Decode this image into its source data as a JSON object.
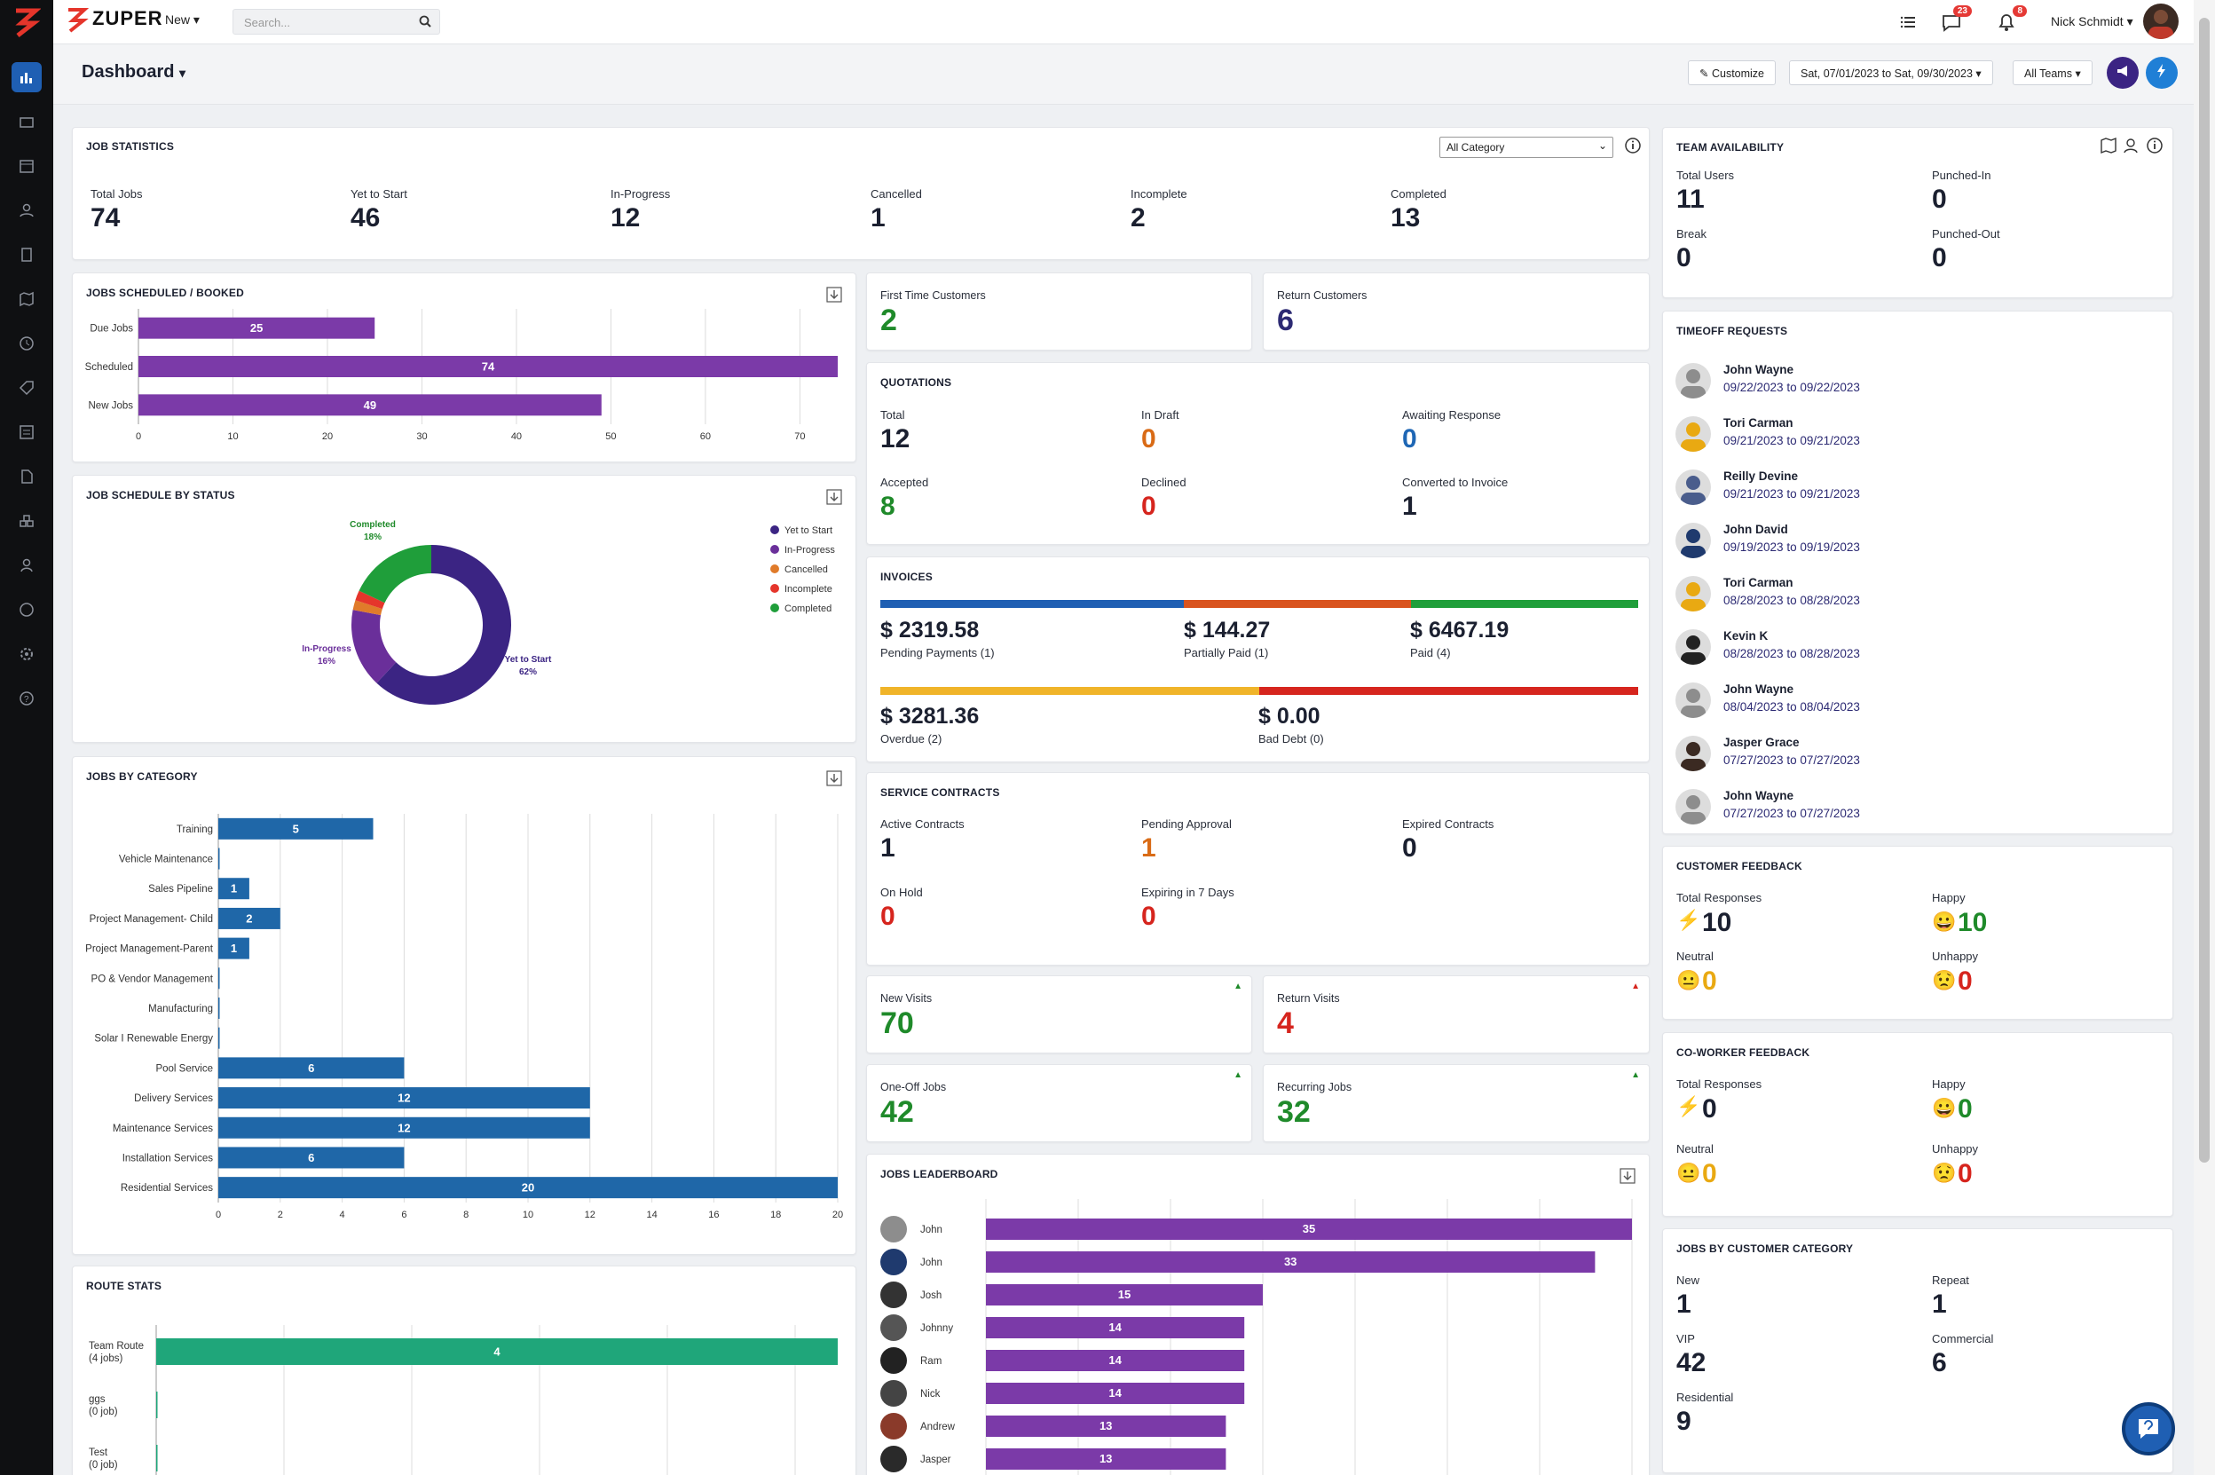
{
  "header": {
    "brand": "ZUPER",
    "new_label": "New",
    "search_placeholder": "Search...",
    "messages_badge": "23",
    "notifications_badge": "8",
    "user_name": "Nick Schmidt"
  },
  "subheader": {
    "title": "Dashboard",
    "customize": "Customize",
    "date_range": "Sat, 07/01/2023 to Sat, 09/30/2023",
    "teams": "All Teams"
  },
  "job_statistics": {
    "title": "JOB STATISTICS",
    "filter": "All Category",
    "items": [
      {
        "label": "Total Jobs",
        "value": "74"
      },
      {
        "label": "Yet to Start",
        "value": "46"
      },
      {
        "label": "In-Progress",
        "value": "12"
      },
      {
        "label": "Cancelled",
        "value": "1"
      },
      {
        "label": "Incomplete",
        "value": "2"
      },
      {
        "label": "Completed",
        "value": "13"
      }
    ]
  },
  "team_availability": {
    "title": "TEAM AVAILABILITY",
    "total_users_label": "Total Users",
    "total_users": "11",
    "punched_in_label": "Punched-In",
    "punched_in": "0",
    "break_label": "Break",
    "break": "0",
    "punched_out_label": "Punched-Out",
    "punched_out": "0"
  },
  "jobs_scheduled": {
    "title": "JOBS SCHEDULED / BOOKED",
    "chart_data": {
      "type": "bar",
      "orientation": "horizontal",
      "categories": [
        "Due Jobs",
        "Scheduled",
        "New Jobs"
      ],
      "values": [
        25,
        74,
        49
      ],
      "xticks": [
        "0",
        "10",
        "20",
        "30",
        "40",
        "50",
        "60",
        "70"
      ],
      "xlim": [
        0,
        74
      ],
      "color": "#7b3aa8"
    }
  },
  "first_time_customers": {
    "label": "First Time Customers",
    "value": "2"
  },
  "return_customers": {
    "label": "Return Customers",
    "value": "6"
  },
  "quotations": {
    "title": "QUOTATIONS",
    "total_label": "Total",
    "total": "12",
    "in_draft_label": "In Draft",
    "in_draft": "0",
    "awaiting_label": "Awaiting Response",
    "awaiting": "0",
    "accepted_label": "Accepted",
    "accepted": "8",
    "declined_label": "Declined",
    "declined": "0",
    "converted_label": "Converted to Invoice",
    "converted": "1"
  },
  "invoices": {
    "title": "INVOICES",
    "pending_amount": "$ 2319.58",
    "pending_label": "Pending Payments (1)",
    "partial_amount": "$ 144.27",
    "partial_label": "Partially Paid (1)",
    "paid_amount": "$ 6467.19",
    "paid_label": "Paid (4)",
    "overdue_amount": "$ 3281.36",
    "overdue_label": "Overdue (2)",
    "bad_amount": "$ 0.00",
    "bad_label": "Bad Debt (0)",
    "bar1": [
      {
        "color": "#1f5fb3",
        "fraction": 0.4
      },
      {
        "color": "#d9531e",
        "fraction": 0.3
      },
      {
        "color": "#1f9e3a",
        "fraction": 0.3
      }
    ],
    "bar2": [
      {
        "color": "#f0b429",
        "fraction": 0.5
      },
      {
        "color": "#d6251e",
        "fraction": 0.5
      }
    ]
  },
  "service_contracts": {
    "title": "SERVICE CONTRACTS",
    "active_label": "Active Contracts",
    "active": "1",
    "pending_label": "Pending Approval",
    "pending": "1",
    "expired_label": "Expired Contracts",
    "expired": "0",
    "hold_label": "On Hold",
    "hold": "0",
    "expiring_label": "Expiring in 7 Days",
    "expiring": "0"
  },
  "new_visits": {
    "label": "New Visits",
    "value": "70"
  },
  "return_visits": {
    "label": "Return Visits",
    "value": "4"
  },
  "one_off_jobs": {
    "label": "One-Off Jobs",
    "value": "42"
  },
  "recurring_jobs": {
    "label": "Recurring Jobs",
    "value": "32"
  },
  "job_status": {
    "title": "JOB SCHEDULE BY STATUS",
    "chart_data": {
      "type": "pie",
      "variant": "donut",
      "slices": [
        {
          "name": "Yet to Start",
          "value": 62,
          "color": "#3b2483"
        },
        {
          "name": "In-Progress",
          "value": 16,
          "color": "#6a2f9a"
        },
        {
          "name": "Cancelled",
          "value": 2,
          "color": "#e07b2a"
        },
        {
          "name": "Incomplete",
          "value": 2,
          "color": "#e5352b"
        },
        {
          "name": "Completed",
          "value": 18,
          "color": "#1f9e3a"
        }
      ],
      "labels": [
        {
          "text": "Completed",
          "pct": "18%"
        },
        {
          "text": "In-Progress",
          "pct": "16%"
        },
        {
          "text": "Yet to Start",
          "pct": "62%"
        }
      ],
      "legend_position": "top-right"
    }
  },
  "jobs_by_category": {
    "title": "JOBS BY CATEGORY",
    "chart_data": {
      "type": "bar",
      "orientation": "horizontal",
      "categories": [
        "Training",
        "Vehicle Maintenance",
        "Sales Pipeline",
        "Project Management- Child",
        "Project Management-Parent",
        "PO & Vendor Management",
        "Manufacturing",
        "Solar I Renewable Energy",
        "Pool Service",
        "Delivery Services",
        "Maintenance Services",
        "Installation Services",
        "Residential Services"
      ],
      "values": [
        5,
        0,
        1,
        2,
        1,
        0,
        0,
        0,
        6,
        12,
        12,
        6,
        20
      ],
      "xticks": [
        "0",
        "2",
        "4",
        "6",
        "8",
        "10",
        "12",
        "14",
        "16",
        "18",
        "20"
      ],
      "xlim": [
        0,
        20
      ],
      "color": "#1f67a8"
    }
  },
  "jobs_leaderboard": {
    "title": "JOBS LEADERBOARD",
    "chart_data": {
      "type": "bar",
      "orientation": "horizontal",
      "categories": [
        "John",
        "John",
        "Josh",
        "Johnny",
        "Ram",
        "Nick",
        "Andrew",
        "Jasper"
      ],
      "values": [
        35,
        33,
        15,
        14,
        14,
        14,
        13,
        13
      ],
      "xlim": [
        0,
        35
      ],
      "color": "#7b3aa8"
    }
  },
  "route_stats": {
    "title": "ROUTE STATS",
    "chart_data": {
      "type": "bar",
      "orientation": "horizontal",
      "categories": [
        [
          "Team Route",
          "(4 jobs)"
        ],
        [
          "ggs",
          "(0 job)"
        ],
        [
          "Test",
          "(0 job)"
        ]
      ],
      "values": [
        4,
        0,
        0
      ],
      "xlim": [
        0,
        4
      ],
      "color": "#1fa67a"
    }
  },
  "timeoff": {
    "title": "TIMEOFF REQUESTS",
    "items": [
      {
        "name": "John Wayne",
        "dates": "09/22/2023 to 09/22/2023"
      },
      {
        "name": "Tori Carman",
        "dates": "09/21/2023 to 09/21/2023"
      },
      {
        "name": "Reilly Devine",
        "dates": "09/21/2023 to 09/21/2023"
      },
      {
        "name": "John David",
        "dates": "09/19/2023 to 09/19/2023"
      },
      {
        "name": "Tori Carman",
        "dates": "08/28/2023 to 08/28/2023"
      },
      {
        "name": "Kevin K",
        "dates": "08/28/2023 to 08/28/2023"
      },
      {
        "name": "John Wayne",
        "dates": "08/04/2023 to 08/04/2023"
      },
      {
        "name": "Jasper Grace",
        "dates": "07/27/2023 to 07/27/2023"
      },
      {
        "name": "John Wayne",
        "dates": "07/27/2023 to 07/27/2023"
      }
    ]
  },
  "customer_feedback": {
    "title": "CUSTOMER FEEDBACK",
    "total_label": "Total Responses",
    "total": "10",
    "happy_label": "Happy",
    "happy": "10",
    "neutral_label": "Neutral",
    "neutral": "0",
    "unhappy_label": "Unhappy",
    "unhappy": "0"
  },
  "coworker_feedback": {
    "title": "CO-WORKER FEEDBACK",
    "total_label": "Total Responses",
    "total": "0",
    "happy_label": "Happy",
    "happy": "0",
    "neutral_label": "Neutral",
    "neutral": "0",
    "unhappy_label": "Unhappy",
    "unhappy": "0"
  },
  "customer_category": {
    "title": "JOBS BY CUSTOMER CATEGORY",
    "new_label": "New",
    "new": "1",
    "repeat_label": "Repeat",
    "repeat": "1",
    "vip_label": "VIP",
    "vip": "42",
    "commercial_label": "Commercial",
    "commercial": "6",
    "residential_label": "Residential",
    "residential": "9"
  }
}
